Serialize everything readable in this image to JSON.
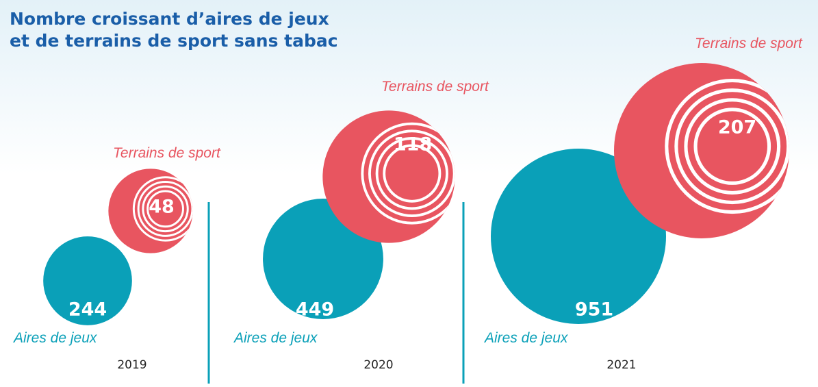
{
  "chart_data": {
    "type": "bubble",
    "title": "Nombre croissant d’aires de jeux\net de terrains de sport sans tabac",
    "categories": [
      "2019",
      "2020",
      "2021"
    ],
    "series": [
      {
        "name": "Aires de jeux",
        "color": "#0aa0b8",
        "values": [
          244,
          449,
          951
        ]
      },
      {
        "name": "Terrains de sport",
        "color": "#e85560",
        "values": [
          48,
          118,
          207
        ]
      }
    ]
  }
}
